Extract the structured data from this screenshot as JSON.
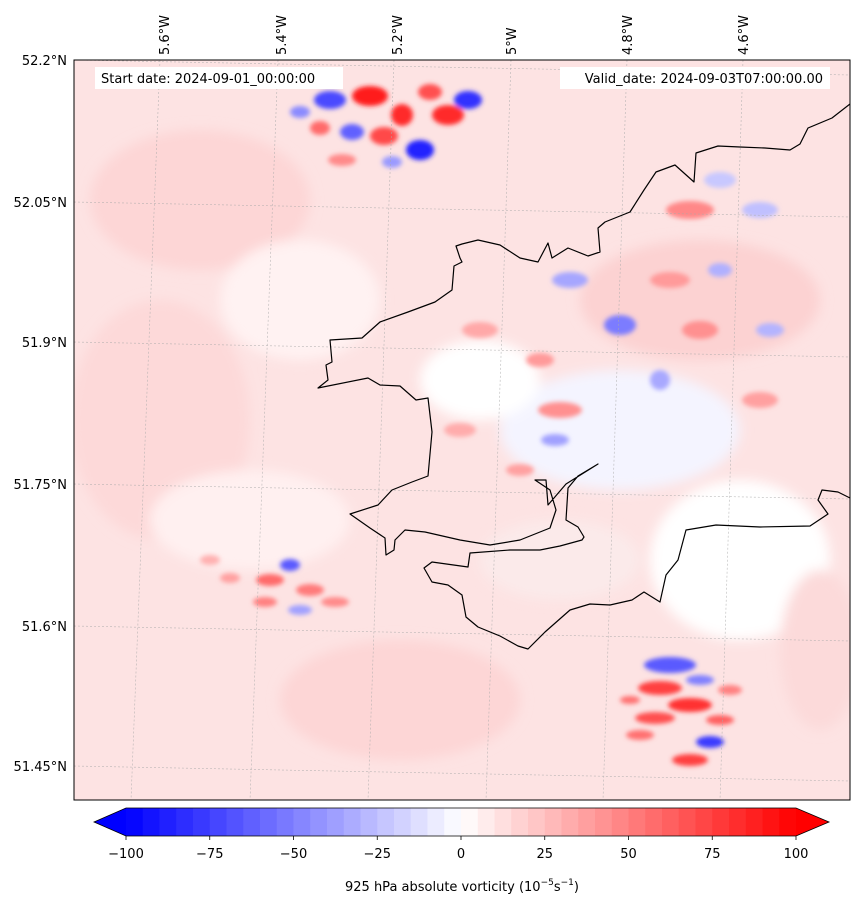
{
  "map": {
    "start_date": "Start date: 2024-09-01_00:00:00",
    "valid_date": "Valid_date: 2024-09-03T07:00:00.00",
    "lon_labels": [
      "5.6°W",
      "5.4°W",
      "5.2°W",
      "5°W",
      "4.8°W",
      "4.6°W"
    ],
    "lat_labels": [
      "52.2°N",
      "52.05°N",
      "51.9°N",
      "51.75°N",
      "51.6°N",
      "51.45°N"
    ]
  },
  "colorbar": {
    "label_prefix": "925 hPa absolute vorticity (10",
    "label_exp1": "−5",
    "label_mid": "s",
    "label_exp2": "−1",
    "label_suffix": ")",
    "ticks": [
      "−100",
      "−75",
      "−50",
      "−25",
      "0",
      "25",
      "50",
      "75",
      "100"
    ],
    "vmin": -100,
    "vmax": 100,
    "colors": {
      "negative": "#0000ff",
      "zero": "#ffffff",
      "positive": "#ff0000"
    }
  }
}
